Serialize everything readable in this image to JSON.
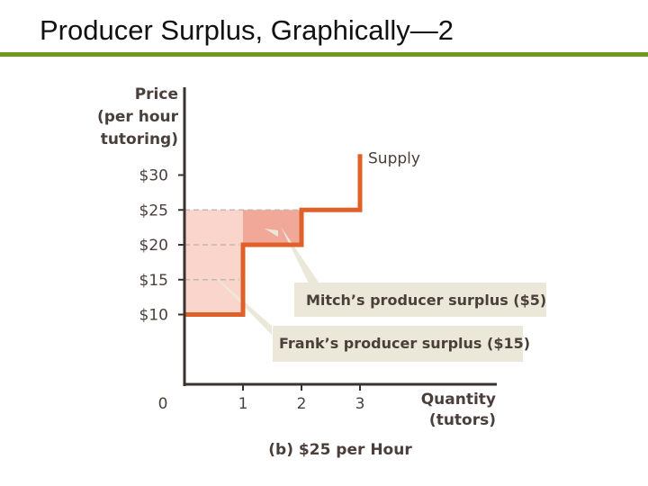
{
  "title": "Producer Surplus, Graphically—2",
  "colors": {
    "rule": "#6b9a1c",
    "supply": "#e0602a",
    "axis": "#3a3230",
    "frank_fill": "#f9d5cc",
    "mitch_fill": "#f2a898",
    "callout_bg": "#ece8d9",
    "dashes": "#c0b8b4",
    "text": "#4a3f3a"
  },
  "chart_data": {
    "type": "line",
    "ylabel": [
      "Price",
      "(per hour",
      "tutoring)"
    ],
    "xlabel": [
      "Quantity",
      "(tutors)"
    ],
    "caption": "(b) $25 per Hour",
    "origin_label": "0",
    "x_ticks": [
      1,
      2,
      3
    ],
    "x_tick_labels": [
      "1",
      "2",
      "3"
    ],
    "y_ticks": [
      10,
      15,
      20,
      25,
      30
    ],
    "y_tick_labels": [
      "$10",
      "$15",
      "$20",
      "$25",
      "$30"
    ],
    "xlim": [
      0,
      5.3
    ],
    "ylim": [
      0,
      40
    ],
    "price": 25,
    "series": [
      {
        "name": "Supply",
        "steps": [
          {
            "x": [
              0,
              1
            ],
            "y": 10
          },
          {
            "x": [
              1,
              2
            ],
            "y": 20
          },
          {
            "x": [
              2,
              3
            ],
            "y": 25
          }
        ],
        "vertical_end": {
          "x": 3,
          "y": [
            25,
            33
          ]
        }
      }
    ],
    "surplus_areas": [
      {
        "name": "Frank",
        "x": [
          0,
          1
        ],
        "y": [
          10,
          25
        ]
      },
      {
        "name": "Mitch",
        "x": [
          1,
          2
        ],
        "y": [
          20,
          25
        ]
      }
    ],
    "annotations": [
      {
        "text": "Mitch’s producer surplus ($5)",
        "points_to": {
          "x": 1.4,
          "y": 22
        }
      },
      {
        "text": "Frank’s producer surplus ($15)",
        "points_to": {
          "x": 0.5,
          "y": 15
        }
      }
    ]
  }
}
